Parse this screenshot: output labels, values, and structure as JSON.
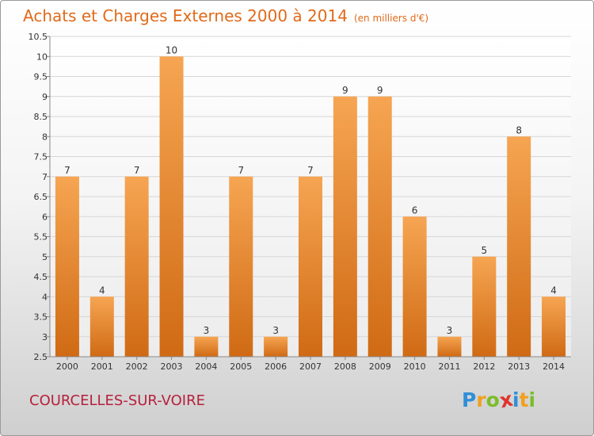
{
  "chart_data": {
    "type": "bar",
    "title": "Achats et Charges Externes 2000 à 2014",
    "subtitle": "(en milliers d'€)",
    "categories": [
      "2000",
      "2001",
      "2002",
      "2003",
      "2004",
      "2005",
      "2006",
      "2007",
      "2008",
      "2009",
      "2010",
      "2011",
      "2012",
      "2013",
      "2014"
    ],
    "values": [
      7,
      4,
      7,
      10,
      3,
      7,
      3,
      7,
      9,
      9,
      6,
      3,
      5,
      8,
      4
    ],
    "ylim": [
      2.5,
      10.5
    ],
    "yticks": [
      "2.5",
      "3",
      "3.5",
      "4",
      "4.5",
      "5",
      "5.5",
      "6",
      "6.5",
      "7",
      "7.5",
      "8",
      "8.5",
      "9",
      "9.5",
      "10",
      "10.5"
    ],
    "grid": true,
    "bar_color": "#e8842e"
  },
  "footer": {
    "location": "COURCELLES-SUR-VOIRE",
    "logo_letters": [
      "P",
      "r",
      "o",
      "x",
      "i",
      "t",
      "i"
    ],
    "logo_colors": [
      "#2f8fd8",
      "#f0a020",
      "#7cbd2a",
      "#e0332d",
      "#2f8fd8",
      "#f0a020",
      "#7cbd2a"
    ]
  }
}
